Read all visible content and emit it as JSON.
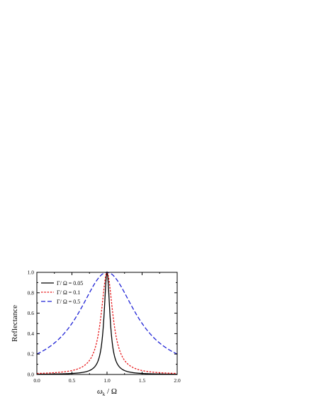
{
  "chart_data": {
    "type": "line",
    "xlabel_main": "ω",
    "xlabel_sub": "k",
    "xlabel_rest": " / Ω",
    "ylabel": "Reflectance",
    "xlim": [
      0.0,
      2.0
    ],
    "ylim": [
      0.0,
      1.0
    ],
    "x_ticks": [
      "0.0",
      "0.5",
      "1.0",
      "1.5",
      "2.0"
    ],
    "y_ticks": [
      "0.0",
      "0.2",
      "0.4",
      "0.6",
      "0.8",
      "1.0"
    ],
    "legend_position": "top-left",
    "series": [
      {
        "name": "Γ/ Ω = 0.05",
        "color": "#000000",
        "style": "solid",
        "gamma": 0.05
      },
      {
        "name": "Γ/ Ω = 0.1",
        "color": "#e8191b",
        "style": "dotted",
        "gamma": 0.1
      },
      {
        "name": "Γ/ Ω = 0.5",
        "color": "#1f23d6",
        "style": "dashed",
        "gamma": 0.5
      }
    ]
  }
}
